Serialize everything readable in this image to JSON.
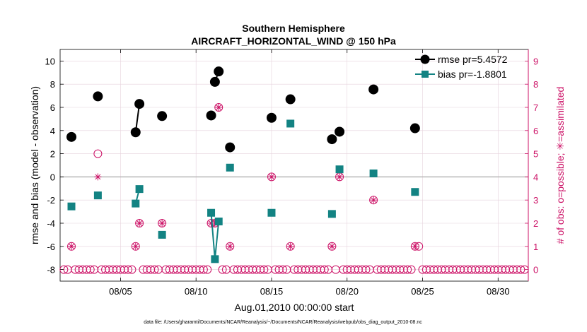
{
  "chart_data": {
    "type": "scatter",
    "title": "Southern Hemisphere",
    "subtitle": "AIRCRAFT_HORIZONTAL_WIND @ 150 hPa",
    "xlabel": "Aug.01,2010 00:00:00 start",
    "ylabel": "rmse and bias (model - observation)",
    "y2label": "# of obs: o=possible; ✳=assimilated",
    "footnote": "data file: /Users/gharamti/Documents/NCAR/Reanalysis/~/Documents/NCAR/Reanalysis/webpub/obs_diag_output_2010-08.nc",
    "xlim": [
      1,
      32
    ],
    "ylim": [
      -9,
      11
    ],
    "y2lim": [
      -0.5,
      9.5
    ],
    "grid": true,
    "legend_position": "top-right",
    "x_ticks": [
      {
        "x": 5,
        "label": "08/05"
      },
      {
        "x": 10,
        "label": "08/10"
      },
      {
        "x": 15,
        "label": "08/15"
      },
      {
        "x": 20,
        "label": "08/20"
      },
      {
        "x": 25,
        "label": "08/25"
      },
      {
        "x": 30,
        "label": "08/30"
      }
    ],
    "y_ticks": [
      10,
      8,
      6,
      4,
      2,
      0,
      -2,
      -4,
      -6,
      -8
    ],
    "y2_ticks": [
      9,
      8,
      7,
      6,
      5,
      4,
      3,
      2,
      1,
      0
    ],
    "colors": {
      "rmse": "#000000",
      "bias": "#138383",
      "obs": "#cc1166",
      "zero_line": "#b0b0b0",
      "grid": "#e6d2dc"
    },
    "series": [
      {
        "name": "rmse pr=5.4572",
        "key": "rmse",
        "marker": "circle",
        "segments": [
          [
            [
              1.75,
              3.45
            ]
          ],
          [
            [
              3.5,
              6.95
            ]
          ],
          [
            [
              6.0,
              3.85
            ],
            [
              6.25,
              6.3
            ]
          ],
          [
            [
              7.75,
              5.25
            ]
          ],
          [
            [
              11.0,
              5.3
            ]
          ],
          [
            [
              11.25,
              8.2
            ],
            [
              11.5,
              9.1
            ]
          ],
          [
            [
              12.25,
              2.55
            ]
          ],
          [
            [
              15.0,
              5.1
            ]
          ],
          [
            [
              16.25,
              6.7
            ]
          ],
          [
            [
              19.0,
              3.25
            ]
          ],
          [
            [
              19.5,
              3.9
            ]
          ],
          [
            [
              21.75,
              7.55
            ]
          ],
          [
            [
              24.5,
              4.2
            ]
          ]
        ]
      },
      {
        "name": "bias pr=-1.8801",
        "key": "bias",
        "marker": "square",
        "segments": [
          [
            [
              1.75,
              -2.55
            ]
          ],
          [
            [
              3.5,
              -1.6
            ]
          ],
          [
            [
              6.0,
              -2.3
            ],
            [
              6.25,
              -1.05
            ]
          ],
          [
            [
              7.75,
              -5.0
            ]
          ],
          [
            [
              11.0,
              -3.1
            ],
            [
              11.25,
              -7.1
            ],
            [
              11.5,
              -3.85
            ]
          ],
          [
            [
              12.25,
              0.8
            ]
          ],
          [
            [
              15.0,
              -3.1
            ]
          ],
          [
            [
              16.25,
              4.6
            ]
          ],
          [
            [
              19.0,
              -3.2
            ]
          ],
          [
            [
              19.5,
              0.65
            ]
          ],
          [
            [
              21.75,
              0.3
            ]
          ],
          [
            [
              24.5,
              -1.3
            ]
          ]
        ]
      }
    ],
    "obs_possible": [
      {
        "x": 1.75,
        "n": 1
      },
      {
        "x": 3.5,
        "n": 5
      },
      {
        "x": 6.0,
        "n": 1
      },
      {
        "x": 6.25,
        "n": 2
      },
      {
        "x": 7.75,
        "n": 2
      },
      {
        "x": 11.0,
        "n": 2
      },
      {
        "x": 11.25,
        "n": 2
      },
      {
        "x": 11.5,
        "n": 7
      },
      {
        "x": 12.25,
        "n": 1
      },
      {
        "x": 15.0,
        "n": 4
      },
      {
        "x": 16.25,
        "n": 1
      },
      {
        "x": 19.0,
        "n": 1
      },
      {
        "x": 19.5,
        "n": 4
      },
      {
        "x": 21.75,
        "n": 3
      },
      {
        "x": 24.5,
        "n": 1
      },
      {
        "x": 24.75,
        "n": 1
      }
    ],
    "obs_assimilated": [
      {
        "x": 1.75,
        "n": 1
      },
      {
        "x": 3.5,
        "n": 4
      },
      {
        "x": 6.0,
        "n": 1
      },
      {
        "x": 6.25,
        "n": 2
      },
      {
        "x": 7.75,
        "n": 2
      },
      {
        "x": 11.0,
        "n": 2
      },
      {
        "x": 11.25,
        "n": 2
      },
      {
        "x": 11.5,
        "n": 7
      },
      {
        "x": 12.25,
        "n": 1
      },
      {
        "x": 15.0,
        "n": 4
      },
      {
        "x": 16.25,
        "n": 1
      },
      {
        "x": 19.0,
        "n": 1
      },
      {
        "x": 19.5,
        "n": 4
      },
      {
        "x": 21.75,
        "n": 3
      },
      {
        "x": 24.5,
        "n": 1
      }
    ]
  }
}
